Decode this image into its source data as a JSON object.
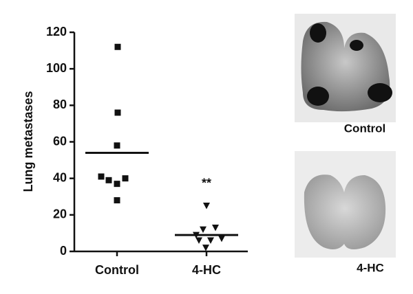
{
  "chart_data": {
    "type": "dot",
    "y_label": "Lung metastases",
    "categories": [
      "Control",
      "4-HC"
    ],
    "groups": [
      [
        112,
        76,
        58,
        41,
        39,
        37,
        40,
        28
      ],
      [
        25,
        12,
        13,
        9,
        6,
        6,
        7,
        2
      ]
    ],
    "markers": [
      "square",
      "triangle-down"
    ],
    "means": [
      54,
      9
    ],
    "annotation": "**",
    "color": "#111111",
    "ylim": [
      0,
      120
    ],
    "yticks": [
      0,
      20,
      40,
      60,
      80,
      100,
      120
    ]
  },
  "images": [
    {
      "label": "Control"
    },
    {
      "label": "4-HC"
    }
  ]
}
